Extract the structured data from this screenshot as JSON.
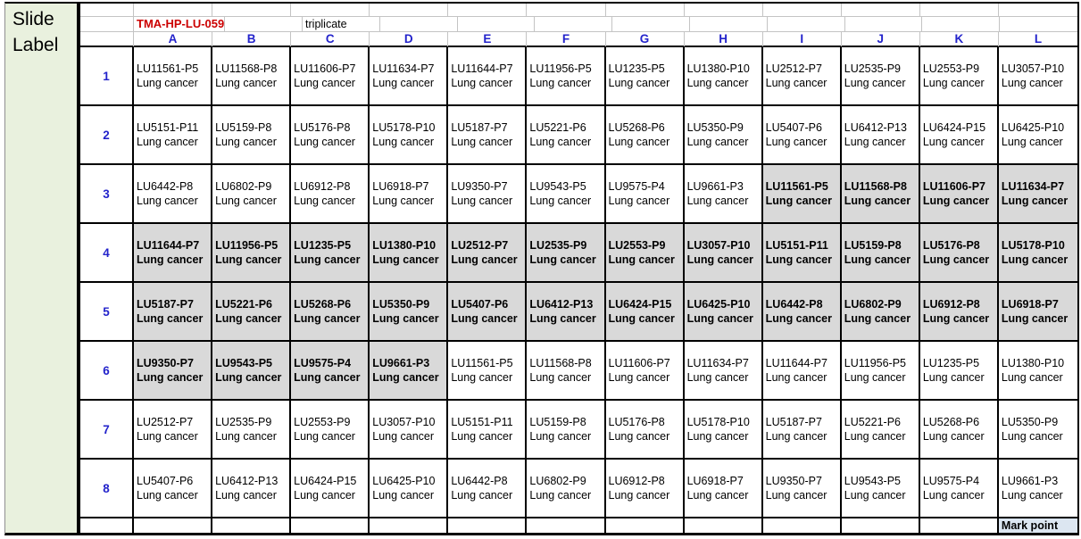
{
  "slide_label": "Slide Label",
  "diagnosis_label": "Lung cancer",
  "header": {
    "title": "TMA-HP-LU-059",
    "note": "triplicate",
    "columns": [
      "A",
      "B",
      "C",
      "D",
      "E",
      "F",
      "G",
      "H",
      "I",
      "J",
      "K",
      "L"
    ]
  },
  "footer": {
    "mark_point": "Mark point"
  },
  "colors": {
    "slide_label_bg": "#e9f1de",
    "highlight_bg": "#d9d9d9",
    "mark_point_bg": "#dce6f1",
    "header_text": "#2323cb",
    "title_text": "#cc0000"
  },
  "rows": [
    {
      "num": "1",
      "samples": [
        "LU11561-P5",
        "LU11568-P8",
        "LU11606-P7",
        "LU11634-P7",
        "LU11644-P7",
        "LU11956-P5",
        "LU1235-P5",
        "LU1380-P10",
        "LU2512-P7",
        "LU2535-P9",
        "LU2553-P9",
        "LU3057-P10"
      ],
      "highlight": [
        0,
        0,
        0,
        0,
        0,
        0,
        0,
        0,
        0,
        0,
        0,
        0
      ]
    },
    {
      "num": "2",
      "samples": [
        "LU5151-P11",
        "LU5159-P8",
        "LU5176-P8",
        "LU5178-P10",
        "LU5187-P7",
        "LU5221-P6",
        "LU5268-P6",
        "LU5350-P9",
        "LU5407-P6",
        "LU6412-P13",
        "LU6424-P15",
        "LU6425-P10"
      ],
      "highlight": [
        0,
        0,
        0,
        0,
        0,
        0,
        0,
        0,
        0,
        0,
        0,
        0
      ]
    },
    {
      "num": "3",
      "samples": [
        "LU6442-P8",
        "LU6802-P9",
        "LU6912-P8",
        "LU6918-P7",
        "LU9350-P7",
        "LU9543-P5",
        "LU9575-P4",
        "LU9661-P3",
        "LU11561-P5",
        "LU11568-P8",
        "LU11606-P7",
        "LU11634-P7"
      ],
      "highlight": [
        0,
        0,
        0,
        0,
        0,
        0,
        0,
        0,
        1,
        1,
        1,
        1
      ]
    },
    {
      "num": "4",
      "samples": [
        "LU11644-P7",
        "LU11956-P5",
        "LU1235-P5",
        "LU1380-P10",
        "LU2512-P7",
        "LU2535-P9",
        "LU2553-P9",
        "LU3057-P10",
        "LU5151-P11",
        "LU5159-P8",
        "LU5176-P8",
        "LU5178-P10"
      ],
      "highlight": [
        1,
        1,
        1,
        1,
        1,
        1,
        1,
        1,
        1,
        1,
        1,
        1
      ]
    },
    {
      "num": "5",
      "samples": [
        "LU5187-P7",
        "LU5221-P6",
        "LU5268-P6",
        "LU5350-P9",
        "LU5407-P6",
        "LU6412-P13",
        "LU6424-P15",
        "LU6425-P10",
        "LU6442-P8",
        "LU6802-P9",
        "LU6912-P8",
        "LU6918-P7"
      ],
      "highlight": [
        1,
        1,
        1,
        1,
        1,
        1,
        1,
        1,
        1,
        1,
        1,
        1
      ]
    },
    {
      "num": "6",
      "samples": [
        "LU9350-P7",
        "LU9543-P5",
        "LU9575-P4",
        "LU9661-P3",
        "LU11561-P5",
        "LU11568-P8",
        "LU11606-P7",
        "LU11634-P7",
        "LU11644-P7",
        "LU11956-P5",
        "LU1235-P5",
        "LU1380-P10"
      ],
      "highlight": [
        1,
        1,
        1,
        1,
        0,
        0,
        0,
        0,
        0,
        0,
        0,
        0
      ]
    },
    {
      "num": "7",
      "samples": [
        "LU2512-P7",
        "LU2535-P9",
        "LU2553-P9",
        "LU3057-P10",
        "LU5151-P11",
        "LU5159-P8",
        "LU5176-P8",
        "LU5178-P10",
        "LU5187-P7",
        "LU5221-P6",
        "LU5268-P6",
        "LU5350-P9"
      ],
      "highlight": [
        0,
        0,
        0,
        0,
        0,
        0,
        0,
        0,
        0,
        0,
        0,
        0
      ]
    },
    {
      "num": "8",
      "samples": [
        "LU5407-P6",
        "LU6412-P13",
        "LU6424-P15",
        "LU6425-P10",
        "LU6442-P8",
        "LU6802-P9",
        "LU6912-P8",
        "LU6918-P7",
        "LU9350-P7",
        "LU9543-P5",
        "LU9575-P4",
        "LU9661-P3"
      ],
      "highlight": [
        0,
        0,
        0,
        0,
        0,
        0,
        0,
        0,
        0,
        0,
        0,
        0
      ]
    }
  ]
}
